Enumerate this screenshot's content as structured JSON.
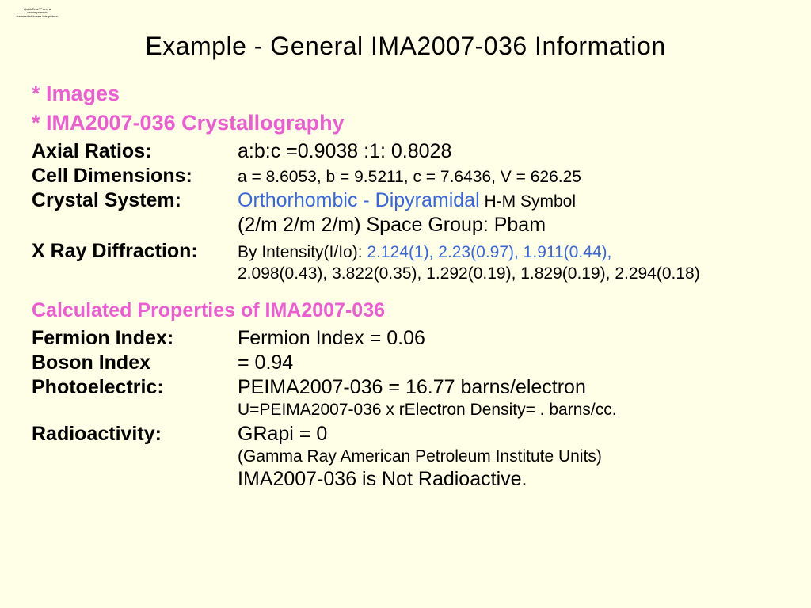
{
  "colors": {
    "background": "#ffffe8",
    "text": "#000000",
    "link_pink": "#e85fcf",
    "link_blue": "#3a66d4"
  },
  "qt_placeholder": {
    "line1": "QuickTime™ and a",
    "line2": "decompressor",
    "line3": "are needed to see this picture."
  },
  "title": "Example - General IMA2007-036 Information",
  "links": {
    "images": "* Images",
    "crystallography": "* IMA2007-036 Crystallography"
  },
  "axial_ratios": {
    "label": "Axial Ratios:",
    "value": "a:b:c =0.9038 :1: 0.8028"
  },
  "cell_dimensions": {
    "label": "Cell Dimensions:",
    "value": "a = 8.6053, b = 9.5211, c = 7.6436, V = 626.25"
  },
  "crystal_system": {
    "label": "Crystal System:",
    "value_blue": "Orthorhombic - Dipyramidal",
    "value_tail": " H-M Symbol",
    "line2": "(2/m 2/m 2/m) Space Group: Pbam"
  },
  "xray": {
    "label": "X Ray Diffraction:",
    "lead": "By Intensity(I/Io): ",
    "blue": "2.124(1), 2.23(0.97), 1.911(0.44),",
    "line2": "2.098(0.43), 3.822(0.35), 1.292(0.19), 1.829(0.19), 2.294(0.18)"
  },
  "calc_heading": "Calculated Properties of IMA2007-036",
  "fermion": {
    "label": "Fermion Index:",
    "value": "Fermion Index = 0.06"
  },
  "boson": {
    "label": "Boson Index",
    "value": "= 0.94"
  },
  "photoelectric": {
    "label": "Photoelectric:",
    "value": "PEIMA2007-036 = 16.77 barns/electron",
    "line2": "U=PEIMA2007-036 x rElectron Density= . barns/cc."
  },
  "radioactivity": {
    "label": "Radioactivity:",
    "value": "GRapi = 0",
    "line2": "(Gamma Ray American Petroleum Institute Units)",
    "line3": "IMA2007-036 is Not Radioactive."
  }
}
